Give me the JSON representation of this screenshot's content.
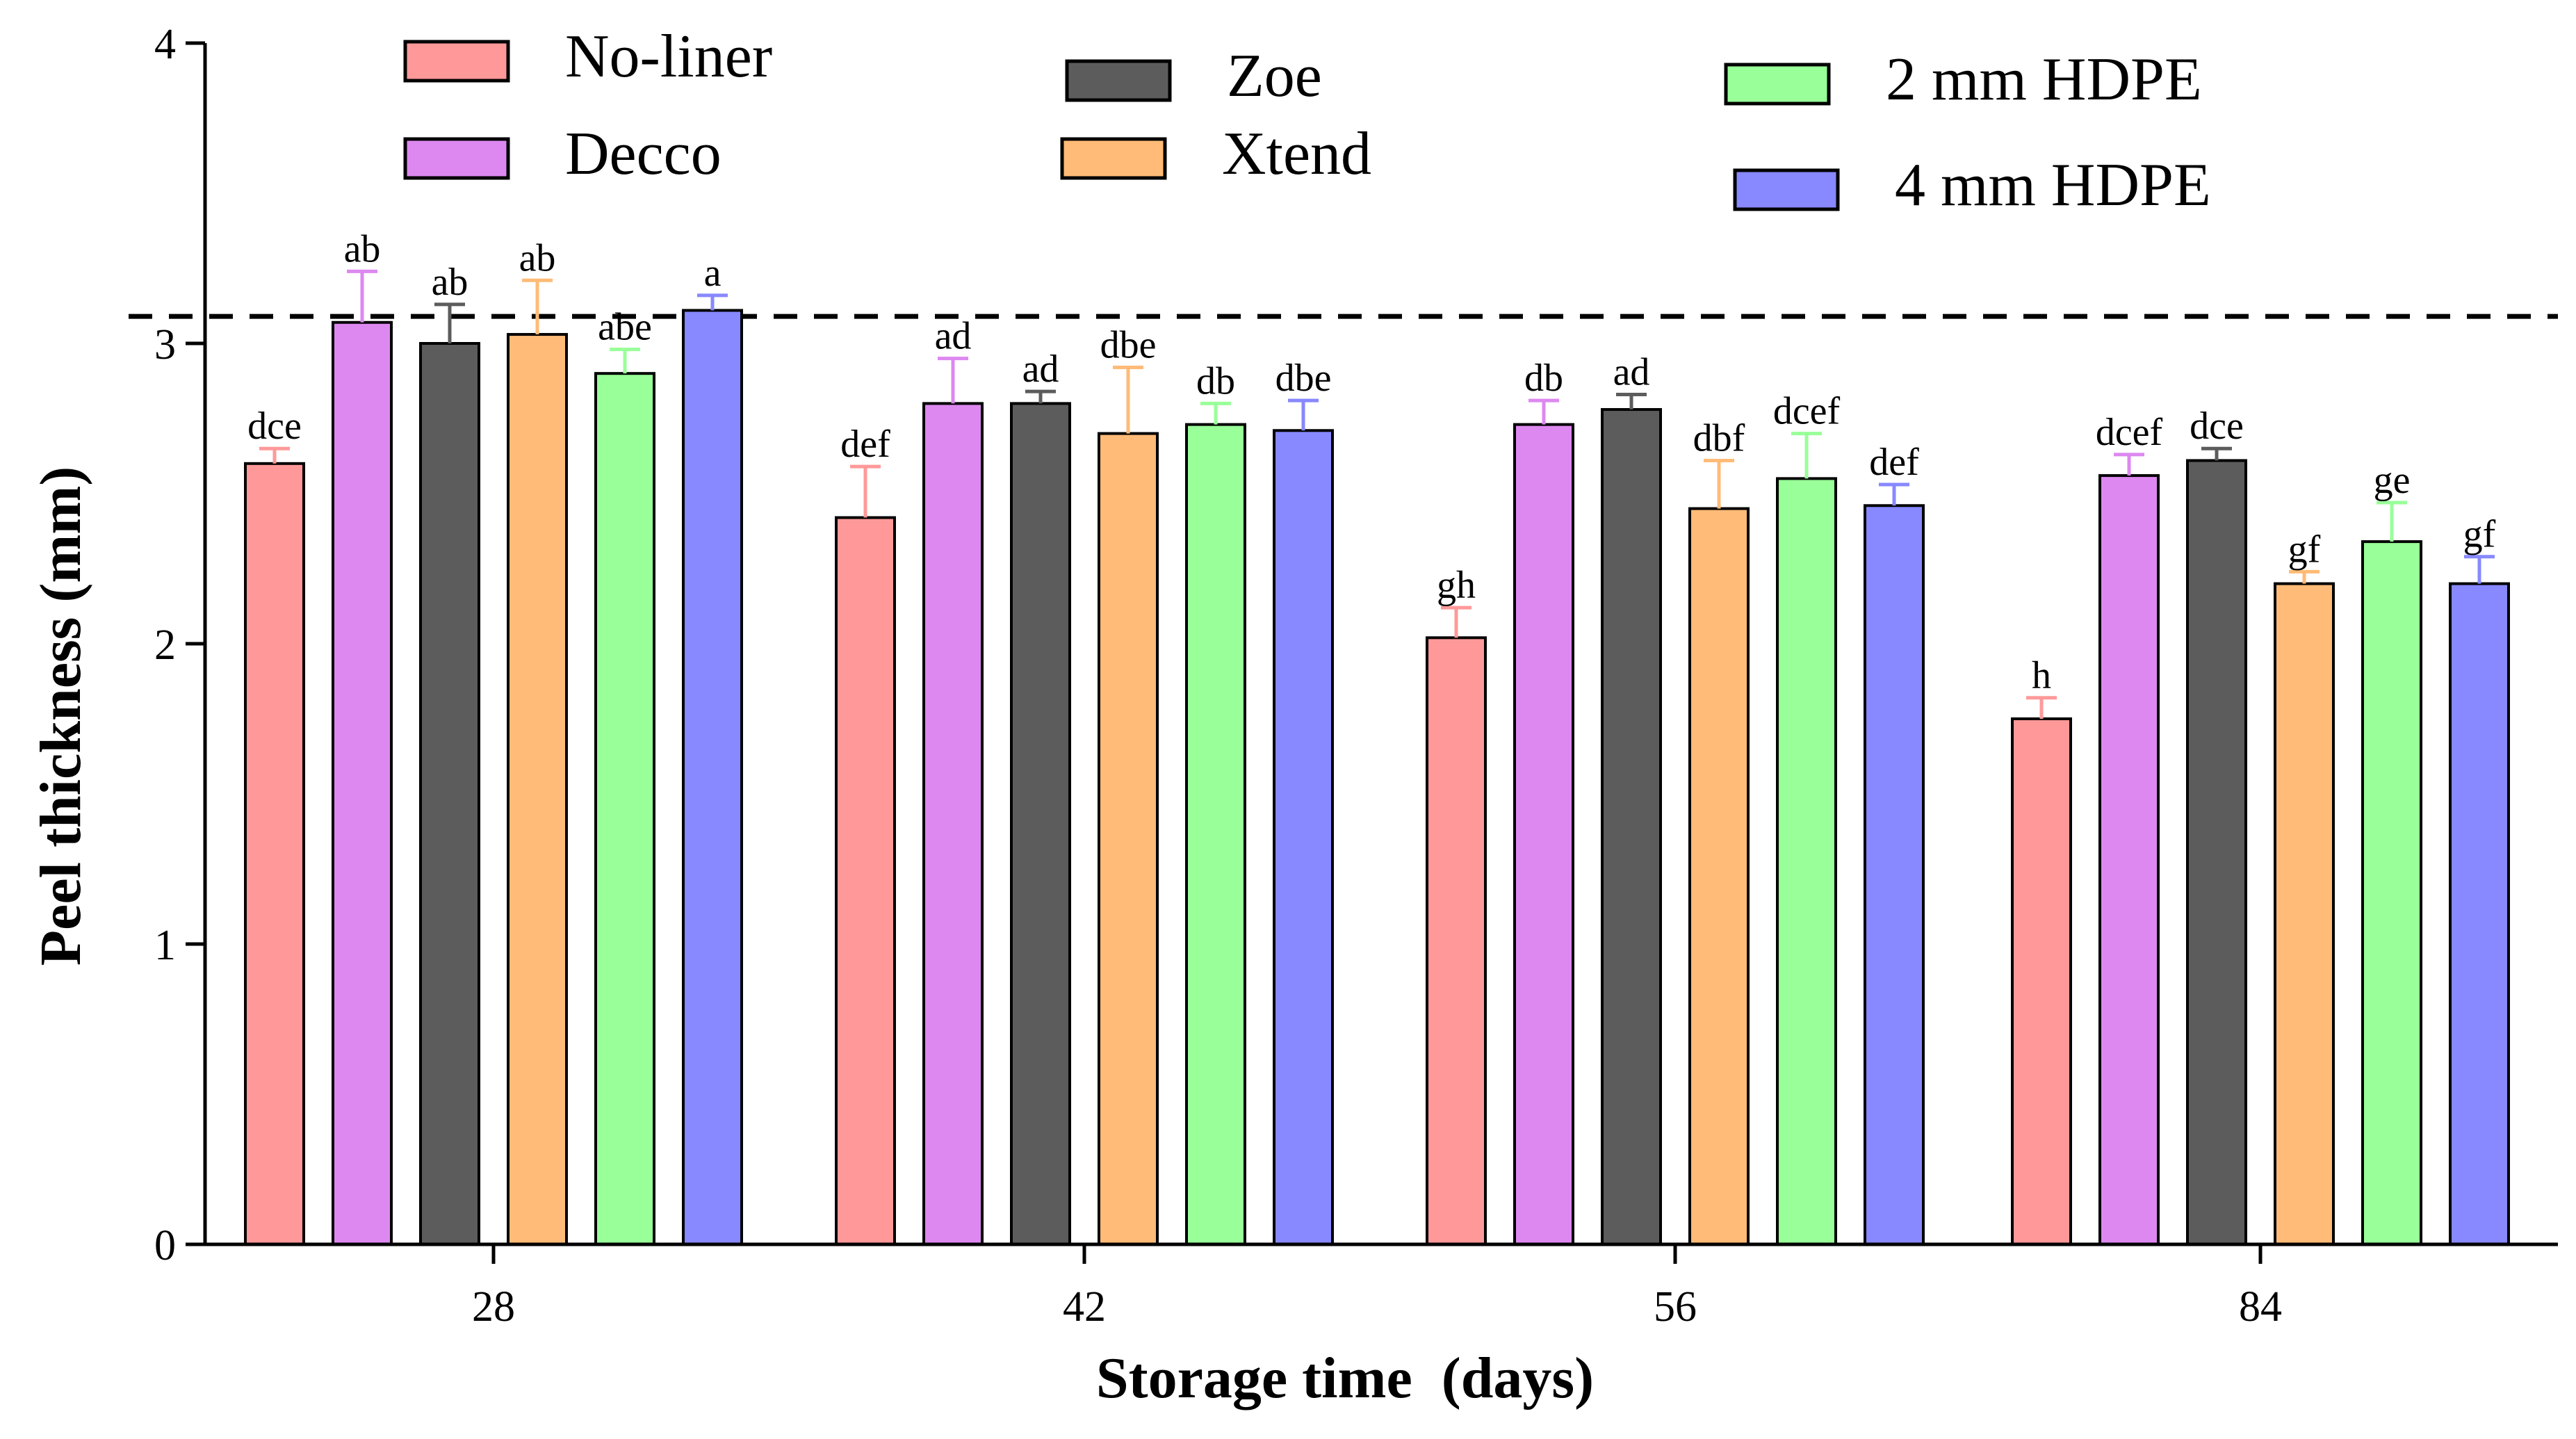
{
  "chart_data": {
    "type": "bar",
    "xlabel": "Storage time  (days)",
    "ylabel": "Peel thickness (mm)",
    "categories": [
      "28",
      "42",
      "56",
      "84"
    ],
    "ylim": [
      0,
      4
    ],
    "yticks": [
      "0",
      "1",
      "2",
      "3",
      "4"
    ],
    "reference_line": 3.09,
    "legend_position": "top",
    "grid": false,
    "series": [
      {
        "name": "No-liner",
        "color": "#FF9999",
        "values": [
          2.6,
          2.42,
          2.02,
          1.75
        ],
        "errors": [
          0.05,
          0.17,
          0.1,
          0.07
        ],
        "labels": [
          "dce",
          "def",
          "gh",
          "h"
        ]
      },
      {
        "name": "Decco",
        "color": "#DD88F0",
        "values": [
          3.07,
          2.8,
          2.73,
          2.56
        ],
        "errors": [
          0.17,
          0.15,
          0.08,
          0.07
        ],
        "labels": [
          "ab",
          "ad",
          "db",
          "dcef"
        ]
      },
      {
        "name": "Zoe",
        "color": "#5C5C5C",
        "values": [
          3.0,
          2.8,
          2.78,
          2.61
        ],
        "errors": [
          0.13,
          0.04,
          0.05,
          0.04
        ],
        "labels": [
          "ab",
          "ad",
          "ad",
          "dce"
        ]
      },
      {
        "name": "Xtend",
        "color": "#FFBB77",
        "values": [
          3.03,
          2.7,
          2.45,
          2.2
        ],
        "errors": [
          0.18,
          0.22,
          0.16,
          0.04
        ],
        "labels": [
          "ab",
          "dbe",
          "dbf",
          "gf"
        ]
      },
      {
        "name": "2 mm HDPE",
        "color": "#99FF99",
        "values": [
          2.9,
          2.73,
          2.55,
          2.34
        ],
        "errors": [
          0.08,
          0.07,
          0.15,
          0.13
        ],
        "labels": [
          "abe",
          "db",
          "dcef",
          "ge"
        ]
      },
      {
        "name": "4 mm HDPE",
        "color": "#8888FF",
        "values": [
          3.11,
          2.71,
          2.46,
          2.2
        ],
        "errors": [
          0.05,
          0.1,
          0.07,
          0.09
        ],
        "labels": [
          "a",
          "dbe",
          "def",
          "gf"
        ]
      }
    ]
  }
}
